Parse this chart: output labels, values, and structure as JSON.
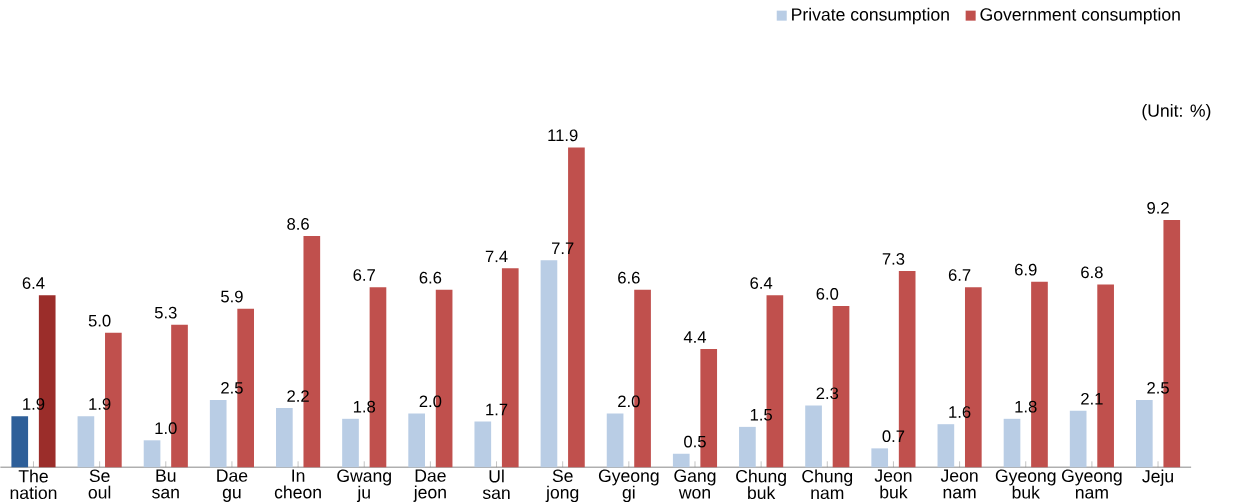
{
  "chart_data": {
    "type": "bar",
    "categories": [
      "The nation",
      "Se oul",
      "Bu san",
      "Dae gu",
      "In cheon",
      "Gwang ju",
      "Dae jeon",
      "Ul san",
      "Se jong",
      "Gyeong gi",
      "Gang won",
      "Chung buk",
      "Chung nam",
      "Jeon buk",
      "Jeon nam",
      "Gyeong buk",
      "Gyeong nam",
      "Jeju"
    ],
    "series": [
      {
        "name": "Private consumption",
        "color": "#b9cde5",
        "colors": [
          "#2e5f99",
          "#b9cde5",
          "#b9cde5",
          "#b9cde5",
          "#b9cde5",
          "#b9cde5",
          "#b9cde5",
          "#b9cde5",
          "#b9cde5",
          "#b9cde5",
          "#b9cde5",
          "#b9cde5",
          "#b9cde5",
          "#b9cde5",
          "#b9cde5",
          "#b9cde5",
          "#b9cde5",
          "#b9cde5"
        ],
        "values": [
          1.9,
          1.9,
          1.0,
          2.5,
          2.2,
          1.8,
          2.0,
          1.7,
          7.7,
          2.0,
          0.5,
          1.5,
          2.3,
          0.7,
          1.6,
          1.8,
          2.1,
          2.5
        ],
        "value_labels": [
          "1.9",
          "1.9",
          "1.0",
          "2.5",
          "2.2",
          "1.8",
          "2.0",
          "1.7",
          "7.7",
          "2.0",
          "0.5",
          "1.5",
          "2.3",
          "0.7",
          "1.6",
          "1.8",
          "2.1",
          "2.5"
        ]
      },
      {
        "name": "Government consumption",
        "color": "#c0504d",
        "colors": [
          "#9b2d2a",
          "#c0504d",
          "#c0504d",
          "#c0504d",
          "#c0504d",
          "#c0504d",
          "#c0504d",
          "#c0504d",
          "#c0504d",
          "#c0504d",
          "#c0504d",
          "#c0504d",
          "#c0504d",
          "#c0504d",
          "#c0504d",
          "#c0504d",
          "#c0504d",
          "#c0504d"
        ],
        "values": [
          6.4,
          5.0,
          5.3,
          5.9,
          8.6,
          6.7,
          6.6,
          7.4,
          11.9,
          6.6,
          4.4,
          6.4,
          6.0,
          7.3,
          6.7,
          6.9,
          6.8,
          9.2
        ],
        "value_labels": [
          "6.4",
          "5.0",
          "5.3",
          "5.9",
          "8.6",
          "6.7",
          "6.6",
          "7.4",
          "11.9",
          "6.6",
          "4.4",
          "6.4",
          "6.0",
          "7.3",
          "6.7",
          "6.9",
          "6.8",
          "9.2"
        ]
      }
    ],
    "legend": "top right",
    "annotations": [
      "(Unit: %)"
    ]
  }
}
